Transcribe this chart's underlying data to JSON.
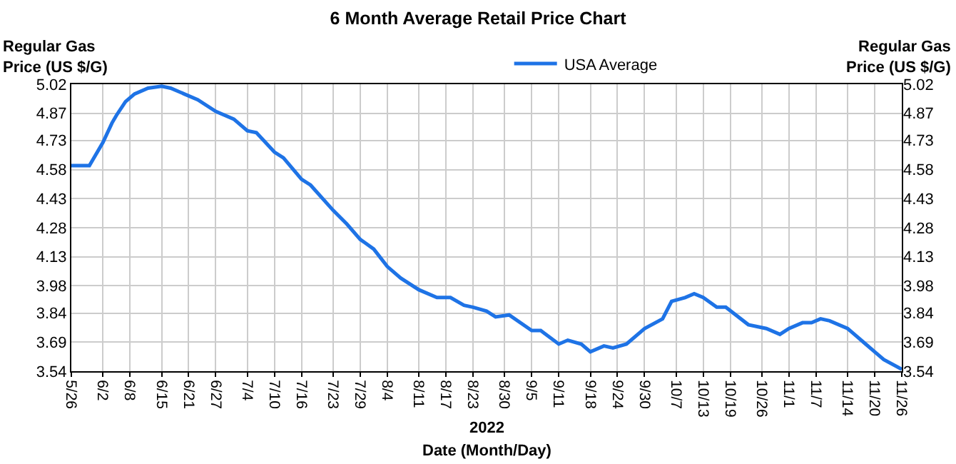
{
  "chart_data": {
    "type": "line",
    "title": "6 Month Average Retail Price Chart",
    "xlabel": "Date (Month/Day)",
    "ylabel": "Regular Gas Price (US $/G)",
    "y2label": "Regular Gas Price (US $/G)",
    "annotations": [
      "2022"
    ],
    "x": [
      "2022-05-26",
      "2022-05-28",
      "2022-05-30",
      "2022-06-02",
      "2022-06-04",
      "2022-06-05",
      "2022-06-07",
      "2022-06-09",
      "2022-06-12",
      "2022-06-15",
      "2022-06-17",
      "2022-06-20",
      "2022-06-23",
      "2022-06-27",
      "2022-07-01",
      "2022-07-04",
      "2022-07-06",
      "2022-07-10",
      "2022-07-12",
      "2022-07-16",
      "2022-07-18",
      "2022-07-23",
      "2022-07-26",
      "2022-07-29",
      "2022-08-01",
      "2022-08-04",
      "2022-08-07",
      "2022-08-11",
      "2022-08-15",
      "2022-08-18",
      "2022-08-21",
      "2022-08-23",
      "2022-08-26",
      "2022-08-28",
      "2022-08-31",
      "2022-09-05",
      "2022-09-07",
      "2022-09-11",
      "2022-09-13",
      "2022-09-16",
      "2022-09-18",
      "2022-09-21",
      "2022-09-23",
      "2022-09-26",
      "2022-09-30",
      "2022-10-04",
      "2022-10-06",
      "2022-10-09",
      "2022-10-11",
      "2022-10-13",
      "2022-10-16",
      "2022-10-18",
      "2022-10-23",
      "2022-10-27",
      "2022-10-30",
      "2022-11-01",
      "2022-11-04",
      "2022-11-06",
      "2022-11-08",
      "2022-11-10",
      "2022-11-14",
      "2022-11-15",
      "2022-11-18",
      "2022-11-20",
      "2022-11-22",
      "2022-11-26"
    ],
    "series": [
      {
        "name": "USA Average",
        "color": "#1e73e6",
        "values": [
          4.6,
          4.6,
          4.6,
          4.72,
          4.82,
          4.86,
          4.93,
          4.97,
          5.0,
          5.01,
          5.0,
          4.97,
          4.94,
          4.88,
          4.84,
          4.78,
          4.77,
          4.67,
          4.64,
          4.53,
          4.5,
          4.37,
          4.3,
          4.22,
          4.17,
          4.08,
          4.02,
          3.96,
          3.92,
          3.92,
          3.88,
          3.87,
          3.85,
          3.82,
          3.83,
          3.75,
          3.75,
          3.68,
          3.7,
          3.68,
          3.64,
          3.67,
          3.66,
          3.68,
          3.76,
          3.81,
          3.9,
          3.92,
          3.94,
          3.92,
          3.87,
          3.87,
          3.78,
          3.76,
          3.73,
          3.76,
          3.79,
          3.79,
          3.81,
          3.8,
          3.76,
          3.74,
          3.68,
          3.64,
          3.6,
          3.55
        ]
      }
    ],
    "xlim": [
      "2022-05-26",
      "2022-11-26"
    ],
    "xticks": [
      {
        "value": "2022-05-26",
        "label": "5/26"
      },
      {
        "value": "2022-06-02",
        "label": "6/2"
      },
      {
        "value": "2022-06-08",
        "label": "6/8"
      },
      {
        "value": "2022-06-15",
        "label": "6/15"
      },
      {
        "value": "2022-06-21",
        "label": "6/21"
      },
      {
        "value": "2022-06-27",
        "label": "6/27"
      },
      {
        "value": "2022-07-04",
        "label": "7/4"
      },
      {
        "value": "2022-07-10",
        "label": "7/10"
      },
      {
        "value": "2022-07-16",
        "label": "7/16"
      },
      {
        "value": "2022-07-23",
        "label": "7/23"
      },
      {
        "value": "2022-07-29",
        "label": "7/29"
      },
      {
        "value": "2022-08-04",
        "label": "8/4"
      },
      {
        "value": "2022-08-11",
        "label": "8/11"
      },
      {
        "value": "2022-08-17",
        "label": "8/17"
      },
      {
        "value": "2022-08-23",
        "label": "8/23"
      },
      {
        "value": "2022-08-30",
        "label": "8/30"
      },
      {
        "value": "2022-09-05",
        "label": "9/5"
      },
      {
        "value": "2022-09-11",
        "label": "9/11"
      },
      {
        "value": "2022-09-18",
        "label": "9/18"
      },
      {
        "value": "2022-09-24",
        "label": "9/24"
      },
      {
        "value": "2022-09-30",
        "label": "9/30"
      },
      {
        "value": "2022-10-07",
        "label": "10/7"
      },
      {
        "value": "2022-10-13",
        "label": "10/13"
      },
      {
        "value": "2022-10-19",
        "label": "10/19"
      },
      {
        "value": "2022-10-26",
        "label": "10/26"
      },
      {
        "value": "2022-11-01",
        "label": "11/1"
      },
      {
        "value": "2022-11-07",
        "label": "11/7"
      },
      {
        "value": "2022-11-14",
        "label": "11/14"
      },
      {
        "value": "2022-11-20",
        "label": "11/20"
      },
      {
        "value": "2022-11-26",
        "label": "11/26"
      }
    ],
    "ylim": [
      3.54,
      5.02
    ],
    "yticks": [
      3.54,
      3.69,
      3.84,
      3.98,
      4.13,
      4.28,
      4.43,
      4.58,
      4.73,
      4.87,
      5.02
    ],
    "y2lim": [
      3.54,
      5.02
    ],
    "y2ticks": [
      3.54,
      3.69,
      3.84,
      3.98,
      4.13,
      4.28,
      4.43,
      4.58,
      4.73,
      4.87,
      5.02
    ],
    "grid": true,
    "legend": "top",
    "marker": "none",
    "line_style": "solid"
  }
}
